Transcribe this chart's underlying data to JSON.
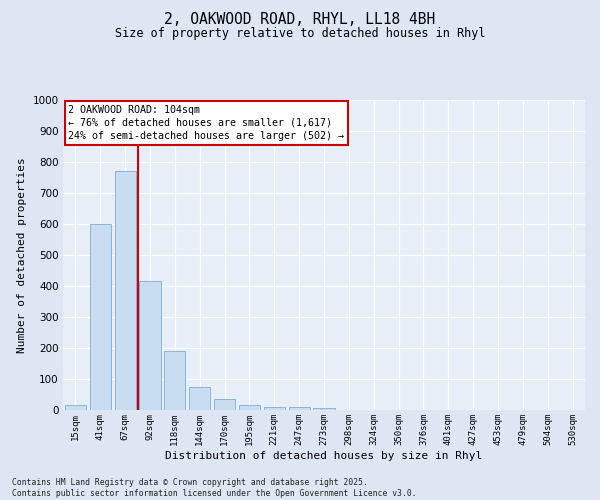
{
  "title_line1": "2, OAKWOOD ROAD, RHYL, LL18 4BH",
  "title_line2": "Size of property relative to detached houses in Rhyl",
  "xlabel": "Distribution of detached houses by size in Rhyl",
  "ylabel": "Number of detached properties",
  "categories": [
    "15sqm",
    "41sqm",
    "67sqm",
    "92sqm",
    "118sqm",
    "144sqm",
    "170sqm",
    "195sqm",
    "221sqm",
    "247sqm",
    "273sqm",
    "298sqm",
    "324sqm",
    "350sqm",
    "376sqm",
    "401sqm",
    "427sqm",
    "453sqm",
    "479sqm",
    "504sqm",
    "530sqm"
  ],
  "values": [
    15,
    600,
    770,
    415,
    190,
    75,
    35,
    15,
    10,
    10,
    5,
    0,
    0,
    0,
    0,
    0,
    0,
    0,
    0,
    0,
    0
  ],
  "bar_color": "#c9ddf2",
  "bar_edge_color": "#8ab4d8",
  "vline_x_index": 2.5,
  "vline_color": "#cc0000",
  "annotation_title": "2 OAKWOOD ROAD: 104sqm",
  "annotation_line1": "← 76% of detached houses are smaller (1,617)",
  "annotation_line2": "24% of semi-detached houses are larger (502) →",
  "annotation_box_color": "#cc0000",
  "ylim": [
    0,
    1000
  ],
  "yticks": [
    0,
    100,
    200,
    300,
    400,
    500,
    600,
    700,
    800,
    900,
    1000
  ],
  "footer_line1": "Contains HM Land Registry data © Crown copyright and database right 2025.",
  "footer_line2": "Contains public sector information licensed under the Open Government Licence v3.0.",
  "bg_color": "#dde6f2",
  "plot_bg_color": "#e8eef8"
}
